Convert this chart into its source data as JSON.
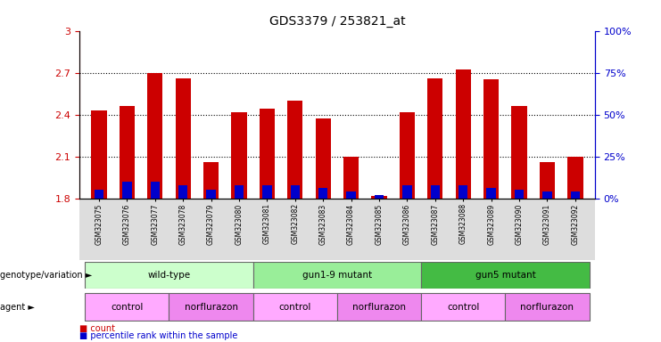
{
  "title": "GDS3379 / 253821_at",
  "samples": [
    "GSM323075",
    "GSM323076",
    "GSM323077",
    "GSM323078",
    "GSM323079",
    "GSM323080",
    "GSM323081",
    "GSM323082",
    "GSM323083",
    "GSM323084",
    "GSM323085",
    "GSM323086",
    "GSM323087",
    "GSM323088",
    "GSM323089",
    "GSM323090",
    "GSM323091",
    "GSM323092"
  ],
  "count_values": [
    2.43,
    2.46,
    2.7,
    2.66,
    2.06,
    2.42,
    2.44,
    2.5,
    2.37,
    2.1,
    1.82,
    2.42,
    2.66,
    2.72,
    2.65,
    2.46,
    2.06,
    2.1
  ],
  "percentile_values": [
    5,
    10,
    10,
    8,
    5,
    8,
    8,
    8,
    6,
    4,
    2,
    8,
    8,
    8,
    6,
    5,
    4,
    4
  ],
  "y_min": 1.8,
  "y_max": 3.0,
  "y_ticks": [
    1.8,
    2.1,
    2.4,
    2.7,
    3.0
  ],
  "y_right_ticks": [
    0,
    25,
    50,
    75,
    100
  ],
  "bar_color_red": "#CC0000",
  "bar_color_blue": "#0000CC",
  "bar_width": 0.55,
  "genotype_groups": [
    {
      "label": "wild-type",
      "start": 0,
      "end": 5,
      "color": "#CCFFCC"
    },
    {
      "label": "gun1-9 mutant",
      "start": 6,
      "end": 11,
      "color": "#99EE99"
    },
    {
      "label": "gun5 mutant",
      "start": 12,
      "end": 17,
      "color": "#44BB44"
    }
  ],
  "agent_groups": [
    {
      "label": "control",
      "start": 0,
      "end": 2,
      "color": "#FFAAFF"
    },
    {
      "label": "norflurazon",
      "start": 3,
      "end": 5,
      "color": "#EE88EE"
    },
    {
      "label": "control",
      "start": 6,
      "end": 8,
      "color": "#FFAAFF"
    },
    {
      "label": "norflurazon",
      "start": 9,
      "end": 11,
      "color": "#EE88EE"
    },
    {
      "label": "control",
      "start": 12,
      "end": 14,
      "color": "#FFAAFF"
    },
    {
      "label": "norflurazon",
      "start": 15,
      "end": 17,
      "color": "#EE88EE"
    }
  ],
  "tick_label_color_left": "#CC0000",
  "tick_label_color_right": "#0000CC",
  "legend_count_color": "#CC0000",
  "legend_percentile_color": "#0000CC"
}
